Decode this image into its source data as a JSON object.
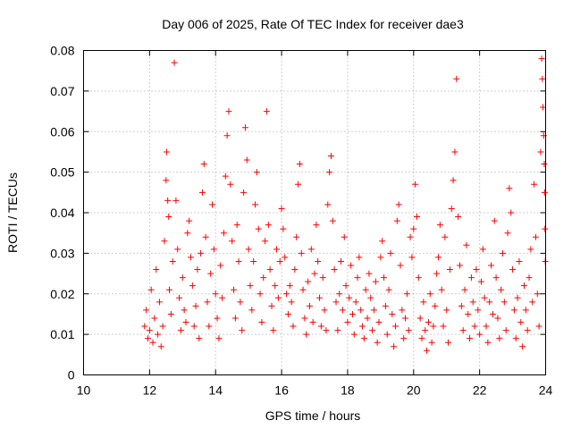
{
  "chart_data": {
    "type": "scatter",
    "title": "Day 006 of 2025, Rate Of TEC Index for receiver dae3",
    "xlabel": "GPS time / hours",
    "ylabel": "ROTI / TECUs",
    "xlim": [
      10,
      24
    ],
    "ylim": [
      0,
      0.08
    ],
    "xticks": [
      10,
      12,
      14,
      16,
      18,
      20,
      22,
      24
    ],
    "yticks": [
      0,
      0.01,
      0.02,
      0.03,
      0.04,
      0.05,
      0.06,
      0.07,
      0.08
    ],
    "xtick_labels": [
      "10",
      "12",
      "14",
      "16",
      "18",
      "20",
      "22",
      "24"
    ],
    "ytick_labels": [
      "0",
      "0.01",
      "0.02",
      "0.03",
      "0.04",
      "0.05",
      "0.06",
      "0.07",
      "0.08"
    ],
    "grid": true,
    "legend": "none",
    "marker": "plus",
    "colors": {
      "series": "#ff0000",
      "grid": "#a0a0a0",
      "axes": "#000000"
    },
    "series": [
      {
        "points": [
          [
            11.85,
            0.012
          ],
          [
            11.9,
            0.016
          ],
          [
            11.95,
            0.009
          ],
          [
            12.0,
            0.011
          ],
          [
            12.05,
            0.021
          ],
          [
            12.1,
            0.008
          ],
          [
            12.15,
            0.014
          ],
          [
            12.2,
            0.026
          ],
          [
            12.25,
            0.01
          ],
          [
            12.3,
            0.018
          ],
          [
            12.35,
            0.007
          ],
          [
            12.4,
            0.012
          ],
          [
            12.45,
            0.033
          ],
          [
            12.5,
            0.048
          ],
          [
            12.52,
            0.055
          ],
          [
            12.55,
            0.043
          ],
          [
            12.58,
            0.039
          ],
          [
            12.6,
            0.021
          ],
          [
            12.65,
            0.015
          ],
          [
            12.7,
            0.028
          ],
          [
            12.75,
            0.077
          ],
          [
            12.8,
            0.043
          ],
          [
            12.85,
            0.031
          ],
          [
            12.9,
            0.019
          ],
          [
            12.95,
            0.011
          ],
          [
            13.0,
            0.024
          ],
          [
            13.05,
            0.016
          ],
          [
            13.1,
            0.013
          ],
          [
            13.15,
            0.035
          ],
          [
            13.2,
            0.038
          ],
          [
            13.25,
            0.029
          ],
          [
            13.3,
            0.022
          ],
          [
            13.35,
            0.012
          ],
          [
            13.4,
            0.017
          ],
          [
            13.45,
            0.026
          ],
          [
            13.5,
            0.009
          ],
          [
            13.55,
            0.03
          ],
          [
            13.6,
            0.045
          ],
          [
            13.65,
            0.052
          ],
          [
            13.7,
            0.034
          ],
          [
            13.75,
            0.018
          ],
          [
            13.8,
            0.012
          ],
          [
            13.85,
            0.025
          ],
          [
            13.9,
            0.042
          ],
          [
            13.95,
            0.031
          ],
          [
            14.0,
            0.02
          ],
          [
            14.05,
            0.014
          ],
          [
            14.1,
            0.009
          ],
          [
            14.15,
            0.027
          ],
          [
            14.2,
            0.019
          ],
          [
            14.25,
            0.035
          ],
          [
            14.3,
            0.049
          ],
          [
            14.35,
            0.059
          ],
          [
            14.4,
            0.065
          ],
          [
            14.45,
            0.047
          ],
          [
            14.5,
            0.033
          ],
          [
            14.55,
            0.021
          ],
          [
            14.6,
            0.014
          ],
          [
            14.65,
            0.037
          ],
          [
            14.7,
            0.028
          ],
          [
            14.75,
            0.018
          ],
          [
            14.8,
            0.011
          ],
          [
            14.85,
            0.045
          ],
          [
            14.9,
            0.061
          ],
          [
            14.95,
            0.053
          ],
          [
            15.0,
            0.031
          ],
          [
            15.05,
            0.022
          ],
          [
            15.1,
            0.016
          ],
          [
            15.15,
            0.028
          ],
          [
            15.2,
            0.042
          ],
          [
            15.25,
            0.05
          ],
          [
            15.3,
            0.036
          ],
          [
            15.35,
            0.02
          ],
          [
            15.4,
            0.013
          ],
          [
            15.45,
            0.024
          ],
          [
            15.5,
            0.033
          ],
          [
            15.55,
            0.065
          ],
          [
            15.6,
            0.037
          ],
          [
            15.65,
            0.026
          ],
          [
            15.7,
            0.017
          ],
          [
            15.75,
            0.011
          ],
          [
            15.8,
            0.022
          ],
          [
            15.85,
            0.031
          ],
          [
            15.9,
            0.019
          ],
          [
            15.95,
            0.028
          ],
          [
            16.0,
            0.041
          ],
          [
            16.05,
            0.036
          ],
          [
            16.1,
            0.029
          ],
          [
            16.15,
            0.02
          ],
          [
            16.2,
            0.015
          ],
          [
            16.25,
            0.022
          ],
          [
            16.3,
            0.018
          ],
          [
            16.35,
            0.012
          ],
          [
            16.4,
            0.026
          ],
          [
            16.45,
            0.034
          ],
          [
            16.5,
            0.047
          ],
          [
            16.55,
            0.052
          ],
          [
            16.6,
            0.03
          ],
          [
            16.65,
            0.021
          ],
          [
            16.7,
            0.014
          ],
          [
            16.75,
            0.01
          ],
          [
            16.8,
            0.023
          ],
          [
            16.85,
            0.017
          ],
          [
            16.9,
            0.031
          ],
          [
            16.95,
            0.013
          ],
          [
            17.0,
            0.025
          ],
          [
            17.05,
            0.037
          ],
          [
            17.1,
            0.028
          ],
          [
            17.15,
            0.019
          ],
          [
            17.2,
            0.012
          ],
          [
            17.25,
            0.024
          ],
          [
            17.3,
            0.016
          ],
          [
            17.35,
            0.011
          ],
          [
            17.4,
            0.042
          ],
          [
            17.45,
            0.05
          ],
          [
            17.5,
            0.054
          ],
          [
            17.55,
            0.038
          ],
          [
            17.6,
            0.026
          ],
          [
            17.65,
            0.018
          ],
          [
            17.7,
            0.011
          ],
          [
            17.75,
            0.02
          ],
          [
            17.8,
            0.028
          ],
          [
            17.85,
            0.016
          ],
          [
            17.9,
            0.034
          ],
          [
            17.95,
            0.022
          ],
          [
            18.0,
            0.013
          ],
          [
            18.05,
            0.019
          ],
          [
            18.1,
            0.027
          ],
          [
            18.15,
            0.015
          ],
          [
            18.2,
            0.01
          ],
          [
            18.25,
            0.018
          ],
          [
            18.3,
            0.024
          ],
          [
            18.35,
            0.029
          ],
          [
            18.4,
            0.016
          ],
          [
            18.45,
            0.012
          ],
          [
            18.5,
            0.009
          ],
          [
            18.55,
            0.021
          ],
          [
            18.6,
            0.014
          ],
          [
            18.65,
            0.025
          ],
          [
            18.7,
            0.019
          ],
          [
            18.75,
            0.011
          ],
          [
            18.8,
            0.016
          ],
          [
            18.85,
            0.023
          ],
          [
            18.9,
            0.008
          ],
          [
            18.95,
            0.013
          ],
          [
            19.0,
            0.029
          ],
          [
            19.05,
            0.033
          ],
          [
            19.1,
            0.024
          ],
          [
            19.15,
            0.017
          ],
          [
            19.2,
            0.01
          ],
          [
            19.25,
            0.021
          ],
          [
            19.3,
            0.03
          ],
          [
            19.35,
            0.015
          ],
          [
            19.4,
            0.007
          ],
          [
            19.45,
            0.012
          ],
          [
            19.5,
            0.038
          ],
          [
            19.55,
            0.042
          ],
          [
            19.6,
            0.027
          ],
          [
            19.65,
            0.016
          ],
          [
            19.7,
            0.009
          ],
          [
            19.75,
            0.014
          ],
          [
            19.8,
            0.02
          ],
          [
            19.85,
            0.011
          ],
          [
            19.9,
            0.034
          ],
          [
            19.95,
            0.029
          ],
          [
            20.0,
            0.036
          ],
          [
            20.05,
            0.047
          ],
          [
            20.1,
            0.039
          ],
          [
            20.15,
            0.024
          ],
          [
            20.2,
            0.014
          ],
          [
            20.25,
            0.009
          ],
          [
            20.3,
            0.018
          ],
          [
            20.35,
            0.011
          ],
          [
            20.4,
            0.006
          ],
          [
            20.45,
            0.013
          ],
          [
            20.5,
            0.02
          ],
          [
            20.55,
            0.008
          ],
          [
            20.6,
            0.012
          ],
          [
            20.65,
            0.017
          ],
          [
            20.7,
            0.025
          ],
          [
            20.75,
            0.029
          ],
          [
            20.8,
            0.037
          ],
          [
            20.85,
            0.021
          ],
          [
            20.9,
            0.012
          ],
          [
            20.95,
            0.034
          ],
          [
            21.0,
            0.016
          ],
          [
            21.05,
            0.008
          ],
          [
            21.1,
            0.026
          ],
          [
            21.15,
            0.041
          ],
          [
            21.2,
            0.048
          ],
          [
            21.25,
            0.055
          ],
          [
            21.3,
            0.073
          ],
          [
            21.35,
            0.039
          ],
          [
            21.4,
            0.027
          ],
          [
            21.45,
            0.017
          ],
          [
            21.5,
            0.011
          ],
          [
            21.55,
            0.021
          ],
          [
            21.6,
            0.032
          ],
          [
            21.65,
            0.015
          ],
          [
            21.7,
            0.009
          ],
          [
            21.75,
            0.024
          ],
          [
            21.8,
            0.018
          ],
          [
            21.85,
            0.012
          ],
          [
            21.9,
            0.026
          ],
          [
            21.95,
            0.016
          ],
          [
            22.0,
            0.01
          ],
          [
            22.05,
            0.023
          ],
          [
            22.1,
            0.031
          ],
          [
            22.15,
            0.019
          ],
          [
            22.2,
            0.012
          ],
          [
            22.25,
            0.008
          ],
          [
            22.3,
            0.018
          ],
          [
            22.35,
            0.027
          ],
          [
            22.4,
            0.015
          ],
          [
            22.45,
            0.038
          ],
          [
            22.5,
            0.024
          ],
          [
            22.55,
            0.014
          ],
          [
            22.6,
            0.009
          ],
          [
            22.65,
            0.021
          ],
          [
            22.7,
            0.03
          ],
          [
            22.75,
            0.018
          ],
          [
            22.8,
            0.011
          ],
          [
            22.85,
            0.035
          ],
          [
            22.9,
            0.046
          ],
          [
            22.95,
            0.04
          ],
          [
            23.0,
            0.026
          ],
          [
            23.05,
            0.016
          ],
          [
            23.1,
            0.009
          ],
          [
            23.15,
            0.019
          ],
          [
            23.2,
            0.028
          ],
          [
            23.25,
            0.013
          ],
          [
            23.3,
            0.007
          ],
          [
            23.35,
            0.022
          ],
          [
            23.4,
            0.016
          ],
          [
            23.45,
            0.011
          ],
          [
            23.5,
            0.024
          ],
          [
            23.55,
            0.031
          ],
          [
            23.6,
            0.018
          ],
          [
            23.65,
            0.047
          ],
          [
            23.7,
            0.034
          ],
          [
            23.75,
            0.02
          ],
          [
            23.8,
            0.012
          ],
          [
            23.85,
            0.055
          ],
          [
            23.88,
            0.078
          ],
          [
            23.9,
            0.073
          ],
          [
            23.92,
            0.066
          ],
          [
            23.94,
            0.059
          ],
          [
            23.96,
            0.052
          ],
          [
            23.97,
            0.045
          ],
          [
            23.98,
            0.036
          ],
          [
            23.99,
            0.028
          ]
        ]
      }
    ]
  }
}
